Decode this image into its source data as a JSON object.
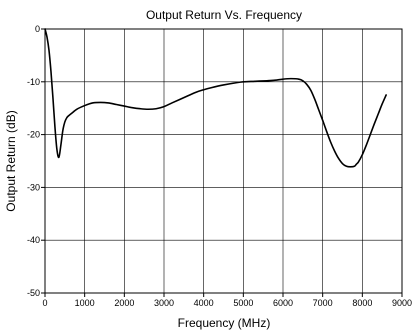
{
  "chart_data": {
    "type": "line",
    "title": "Output Return Vs. Frequency",
    "xlabel": "Frequency (MHz)",
    "ylabel": "Output Return (dB)",
    "xlim": [
      0,
      9000
    ],
    "ylim": [
      -50,
      0
    ],
    "xticks": [
      0,
      1000,
      2000,
      3000,
      4000,
      5000,
      6000,
      7000,
      8000,
      9000
    ],
    "yticks": [
      0,
      -10,
      -20,
      -30,
      -40,
      -50
    ],
    "grid": true,
    "series": [
      {
        "x": [
          0,
          50,
          100,
          150,
          200,
          250,
          300,
          350,
          400,
          450,
          500,
          550,
          600,
          700,
          800,
          1000,
          1200,
          1400,
          1600,
          1800,
          2000,
          2200,
          2400,
          2600,
          2800,
          3000,
          3200,
          3500,
          3800,
          4000,
          4200,
          4500,
          4800,
          5000,
          5300,
          5600,
          5800,
          6000,
          6200,
          6400,
          6500,
          6600,
          6700,
          6800,
          6900,
          7000,
          7100,
          7200,
          7300,
          7400,
          7500,
          7600,
          7700,
          7800,
          7850,
          7900,
          8000,
          8100,
          8200,
          8300,
          8400,
          8500,
          8600
        ],
        "y": [
          0,
          -1.5,
          -4,
          -8,
          -13,
          -18.5,
          -22.8,
          -24.3,
          -22,
          -19.2,
          -17.6,
          -16.8,
          -16.4,
          -15.8,
          -15.2,
          -14.5,
          -14.0,
          -13.9,
          -14.0,
          -14.3,
          -14.6,
          -14.9,
          -15.1,
          -15.2,
          -15.1,
          -14.7,
          -14.0,
          -13.0,
          -12.0,
          -11.5,
          -11.1,
          -10.6,
          -10.2,
          -10.0,
          -9.9,
          -9.8,
          -9.7,
          -9.5,
          -9.4,
          -9.5,
          -9.8,
          -10.5,
          -11.6,
          -13.3,
          -15.3,
          -17.3,
          -19.4,
          -21.4,
          -23.1,
          -24.5,
          -25.5,
          -26.0,
          -26.1,
          -26.0,
          -25.6,
          -25.2,
          -23.8,
          -22.0,
          -20.0,
          -18.0,
          -16.1,
          -14.2,
          -12.5
        ]
      }
    ]
  }
}
